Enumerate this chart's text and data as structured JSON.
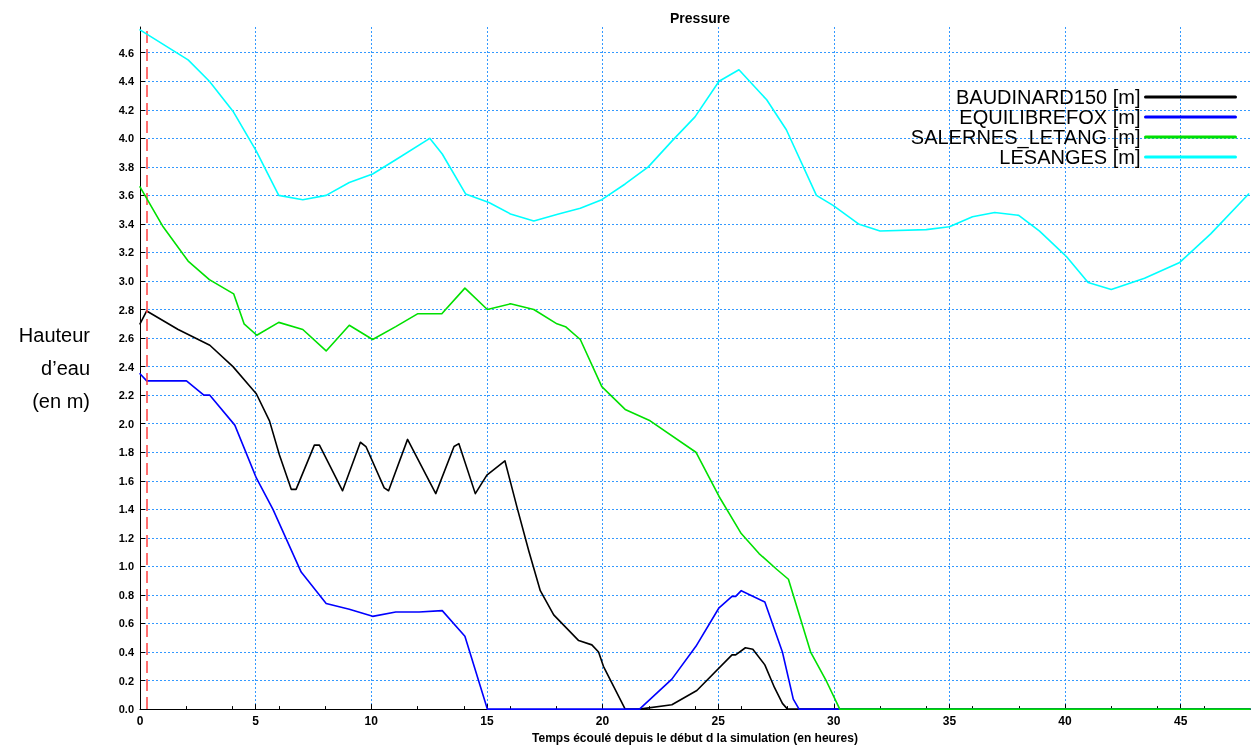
{
  "chart_data": {
    "type": "line",
    "title": "Pressure",
    "xlabel": "Temps écoulé depuis le début d la simulation (en heures)",
    "ylabel": "Hauteur d’eau (en m)",
    "xlim": [
      0,
      48
    ],
    "xticks": [
      0,
      5,
      10,
      15,
      20,
      25,
      30,
      35,
      40,
      45
    ],
    "ylim": [
      0,
      4.78
    ],
    "yticks": [
      {
        "value": 0,
        "label": "0.0"
      },
      0.2,
      0.4,
      0.6,
      0.8,
      {
        "value": 1,
        "label": "1.0"
      },
      1.2,
      1.4,
      1.6,
      1.8,
      {
        "value": 2,
        "label": "2.0"
      },
      2.2,
      2.4,
      2.6,
      2.8,
      {
        "value": 3,
        "label": "3.0"
      },
      3.2,
      3.4,
      3.6,
      3.8,
      {
        "value": 4,
        "label": "4.0"
      },
      4.2,
      4.4,
      4.6
    ],
    "grid": true,
    "legend": "top right",
    "marker": "none",
    "line_style": "solid",
    "ref_lines": [
      {
        "axis": "x",
        "value": 0.3,
        "color": "#ff4040",
        "line_style": "dashed"
      }
    ],
    "series": [
      {
        "name": "BAUDINARD150 [m]",
        "color": "#000000",
        "x": [
          0,
          0.29,
          1.65,
          3.02,
          4.02,
          5.03,
          5.6,
          6.03,
          6.54,
          6.75,
          7.54,
          7.76,
          8.76,
          9.53,
          9.77,
          10.56,
          10.75,
          11.57,
          12.79,
          13.58,
          13.79,
          14.5,
          15.0,
          15.78,
          16.31,
          16.81,
          17.31,
          17.89,
          18.97,
          19.54,
          19.83,
          20.04,
          20.98,
          21.6,
          23.0,
          24.08,
          25.6,
          25.76,
          26.18,
          26.5,
          27.02,
          27.44,
          27.78,
          28.0,
          48
        ],
        "values": [
          2.7,
          2.79,
          2.66,
          2.55,
          2.4,
          2.21,
          2.02,
          1.78,
          1.54,
          1.54,
          1.85,
          1.85,
          1.53,
          1.87,
          1.84,
          1.55,
          1.53,
          1.89,
          1.51,
          1.84,
          1.86,
          1.51,
          1.64,
          1.74,
          1.41,
          1.11,
          0.83,
          0.66,
          0.48,
          0.45,
          0.4,
          0.3,
          0,
          0,
          0.03,
          0.13,
          0.38,
          0.38,
          0.43,
          0.42,
          0.31,
          0.15,
          0.04,
          0,
          0
        ]
      },
      {
        "name": "EQUILIBREFOX [m]",
        "color": "#0000ff",
        "x": [
          0,
          0.29,
          2.01,
          2.76,
          3.02,
          4.1,
          5.03,
          5.75,
          6.61,
          6.97,
          8.05,
          9.05,
          10.06,
          11.06,
          12.07,
          13.07,
          14.05,
          15.02,
          21.6,
          23.0,
          24.04,
          25.04,
          25.6,
          25.76,
          26.0,
          27.02,
          27.78,
          28.25,
          28.5,
          48
        ],
        "values": [
          2.35,
          2.3,
          2.3,
          2.2,
          2.2,
          1.99,
          1.62,
          1.4,
          1.09,
          0.96,
          0.74,
          0.7,
          0.65,
          0.68,
          0.68,
          0.69,
          0.51,
          0,
          0,
          0.21,
          0.44,
          0.71,
          0.79,
          0.79,
          0.83,
          0.75,
          0.4,
          0.07,
          0,
          0
        ]
      },
      {
        "name": "SALERNES_LETANG [m]",
        "color": "#00e000",
        "x": [
          0,
          1.0,
          2.08,
          3.0,
          4.05,
          4.5,
          5.05,
          6.0,
          7.04,
          8.05,
          9.05,
          10.06,
          11.06,
          12.0,
          13.05,
          14.05,
          15.02,
          16.02,
          17.03,
          18.03,
          18.4,
          19.04,
          19.97,
          20.98,
          22.06,
          24.04,
          25.04,
          26.0,
          26.77,
          27.53,
          28.04,
          29.0,
          29.7,
          30.26,
          48
        ],
        "values": [
          3.66,
          3.38,
          3.14,
          3.01,
          2.91,
          2.7,
          2.62,
          2.71,
          2.66,
          2.51,
          2.69,
          2.59,
          2.68,
          2.77,
          2.77,
          2.95,
          2.8,
          2.84,
          2.8,
          2.7,
          2.68,
          2.59,
          2.26,
          2.1,
          2.02,
          1.8,
          1.49,
          1.23,
          1.09,
          0.98,
          0.91,
          0.4,
          0.19,
          0,
          0
        ]
      },
      {
        "name": "LESANGES [m]",
        "color": "#00ffff",
        "x": [
          0,
          2.08,
          3.0,
          4.02,
          5.03,
          6.0,
          7.04,
          8.05,
          9.05,
          10.06,
          11.06,
          12.53,
          13.07,
          14.08,
          15.09,
          16.02,
          17.03,
          18.1,
          19.04,
          19.97,
          20.98,
          21.98,
          23.0,
          24.0,
          25.04,
          25.9,
          27.1,
          27.95,
          29.25,
          29.97,
          31.07,
          32.0,
          34.0,
          35.0,
          36.0,
          36.96,
          38.0,
          38.9,
          40.07,
          41.0,
          42.0,
          43.44,
          44.96,
          46.3,
          47.94
        ],
        "values": [
          4.76,
          4.55,
          4.4,
          4.19,
          3.91,
          3.6,
          3.57,
          3.6,
          3.69,
          3.75,
          3.85,
          4.0,
          3.89,
          3.61,
          3.55,
          3.47,
          3.42,
          3.47,
          3.51,
          3.57,
          3.68,
          3.8,
          3.98,
          4.15,
          4.4,
          4.48,
          4.27,
          4.06,
          3.6,
          3.53,
          3.4,
          3.35,
          3.36,
          3.38,
          3.45,
          3.48,
          3.46,
          3.35,
          3.17,
          2.99,
          2.94,
          3.02,
          3.13,
          3.33,
          3.61
        ]
      }
    ]
  }
}
